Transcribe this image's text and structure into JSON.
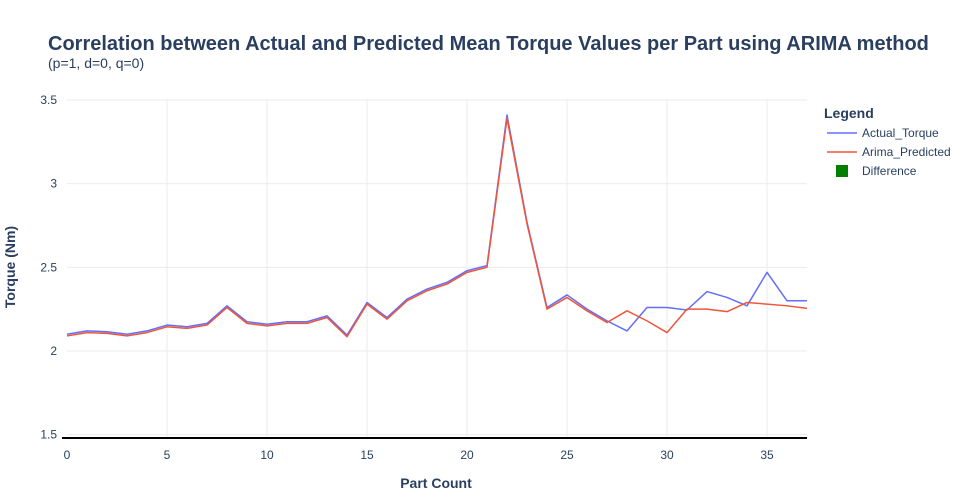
{
  "chart_data": {
    "type": "line",
    "title": "Correlation between Actual and Predicted Mean Torque Values per Part using ARIMA method",
    "subtitle": "(p=1, d=0, q=0)",
    "xlabel": "Part Count",
    "ylabel": "Torque (Nm)",
    "xlim": [
      0,
      37
    ],
    "ylim": [
      1.48,
      3.5
    ],
    "x_ticks": [
      0,
      5,
      10,
      15,
      20,
      25,
      30,
      35
    ],
    "y_ticks": [
      1.5,
      2,
      2.5,
      3,
      3.5
    ],
    "y_tick_labels": [
      "1.5",
      "2",
      "2.5",
      "3",
      "3.5"
    ],
    "grid": true,
    "legend_title": "Legend",
    "legend_position": "top-right",
    "series": [
      {
        "name": "Actual_Torque",
        "color": "#636efa",
        "x": [
          0,
          1,
          2,
          3,
          4,
          5,
          6,
          7,
          8,
          9,
          10,
          11,
          12,
          13,
          14,
          15,
          16,
          17,
          18,
          19,
          20,
          21,
          22,
          23,
          24,
          25,
          26,
          27,
          28,
          29,
          30,
          31,
          32,
          33,
          34,
          35,
          36,
          37
        ],
        "values": [
          2.1,
          2.12,
          2.115,
          2.1,
          2.12,
          2.155,
          2.145,
          2.165,
          2.27,
          2.175,
          2.16,
          2.175,
          2.175,
          2.21,
          2.095,
          2.29,
          2.2,
          2.31,
          2.37,
          2.41,
          2.48,
          2.51,
          3.41,
          2.77,
          2.26,
          2.335,
          2.25,
          2.18,
          2.12,
          2.26,
          2.26,
          2.245,
          2.355,
          2.32,
          2.27,
          2.47,
          2.3,
          2.3
        ]
      },
      {
        "name": "Arima_Predicted",
        "color": "#ef553b",
        "x": [
          0,
          1,
          2,
          3,
          4,
          5,
          6,
          7,
          8,
          9,
          10,
          11,
          12,
          13,
          14,
          15,
          16,
          17,
          18,
          19,
          20,
          21,
          22,
          23,
          24,
          25,
          26,
          27,
          28,
          29,
          30,
          31,
          32,
          33,
          34,
          35,
          36,
          37
        ],
        "values": [
          2.09,
          2.11,
          2.105,
          2.09,
          2.11,
          2.145,
          2.135,
          2.155,
          2.26,
          2.165,
          2.15,
          2.165,
          2.165,
          2.2,
          2.085,
          2.28,
          2.19,
          2.3,
          2.36,
          2.4,
          2.47,
          2.5,
          3.39,
          2.76,
          2.25,
          2.32,
          2.24,
          2.17,
          2.24,
          2.18,
          2.11,
          2.25,
          2.25,
          2.235,
          2.29,
          2.28,
          2.27,
          2.255
        ]
      },
      {
        "name": "Difference",
        "color": "#008000",
        "x": [],
        "values": []
      }
    ]
  }
}
